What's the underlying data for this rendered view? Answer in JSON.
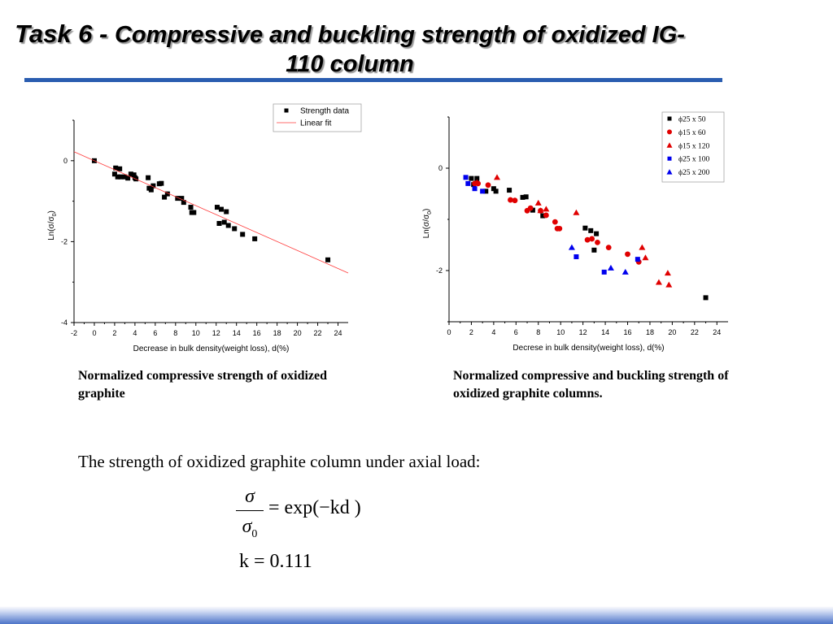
{
  "slide": {
    "title_prefix": "Task 6 - ",
    "title_main": "Compressive and buckling strength of oxidized IG-110 column",
    "caption_left": "Normalized compressive strength of oxidized graphite",
    "caption_right": "Normalized compressive and buckling strength of oxidized graphite columns.",
    "body_text": "The strength of oxidized graphite column under axial load:",
    "formula": {
      "numerator": "σ",
      "denominator": "σ",
      "denominator_sub": "0",
      "rhs": "= exp(−kd )",
      "k_line": "k = 0.111"
    },
    "colors": {
      "accent": "#2a5db0",
      "black": "#000000",
      "red": "#e00000",
      "blue": "#0000ee",
      "fit": "#ff3b3b"
    }
  },
  "chart_data": [
    {
      "type": "scatter",
      "xlabel": "Decrease in bulk density(weight loss), d(%)",
      "ylabel_base": "Ln(σ/σ",
      "ylabel_sub": "0",
      "ylabel_end": ")",
      "xlim": [
        -2,
        25
      ],
      "ylim": [
        -4,
        1
      ],
      "xticks": [
        -2,
        0,
        2,
        4,
        6,
        8,
        10,
        12,
        14,
        16,
        18,
        20,
        22,
        24
      ],
      "yticks": [
        -4,
        -2,
        0
      ],
      "legend_position": "top-right",
      "series": [
        {
          "name": "Strength data",
          "marker": "square",
          "color": "#000000",
          "points": [
            [
              0,
              0
            ],
            [
              2,
              -0.33
            ],
            [
              2.1,
              -0.18
            ],
            [
              2.3,
              -0.4
            ],
            [
              2.5,
              -0.2
            ],
            [
              2.6,
              -0.4
            ],
            [
              3,
              -0.4
            ],
            [
              3.3,
              -0.43
            ],
            [
              3.6,
              -0.33
            ],
            [
              3.9,
              -0.35
            ],
            [
              4,
              -0.42
            ],
            [
              4.1,
              -0.45
            ],
            [
              5.3,
              -0.42
            ],
            [
              5.4,
              -0.68
            ],
            [
              5.6,
              -0.72
            ],
            [
              5.8,
              -0.62
            ],
            [
              6.4,
              -0.57
            ],
            [
              6.6,
              -0.56
            ],
            [
              6.9,
              -0.9
            ],
            [
              7.2,
              -0.82
            ],
            [
              8.2,
              -0.93
            ],
            [
              8.6,
              -0.93
            ],
            [
              8.8,
              -1.03
            ],
            [
              9.5,
              -1.15
            ],
            [
              9.6,
              -1.28
            ],
            [
              9.8,
              -1.28
            ],
            [
              12.1,
              -1.15
            ],
            [
              12.3,
              -1.55
            ],
            [
              12.5,
              -1.2
            ],
            [
              12.8,
              -1.52
            ],
            [
              13,
              -1.26
            ],
            [
              13.2,
              -1.6
            ],
            [
              13.8,
              -1.68
            ],
            [
              14.6,
              -1.82
            ],
            [
              15.8,
              -1.93
            ],
            [
              23,
              -2.45
            ]
          ]
        },
        {
          "name": "Linear fit",
          "marker": "line",
          "color": "#ff3b3b",
          "points": [
            [
              -2,
              0.222
            ],
            [
              25,
              -2.775
            ]
          ]
        }
      ]
    },
    {
      "type": "scatter",
      "xlabel": "Decrese in bulk density(weight loss), d(%)",
      "ylabel_base": "Ln(σ/σ",
      "ylabel_sub": "0",
      "ylabel_end": ")",
      "xlim": [
        0,
        25
      ],
      "ylim": [
        -3,
        1
      ],
      "xticks": [
        0,
        2,
        4,
        6,
        8,
        10,
        12,
        14,
        16,
        18,
        20,
        22,
        24
      ],
      "yticks": [
        -2,
        0
      ],
      "legend_position": "top-right",
      "series": [
        {
          "name": "ϕ25 x 50",
          "marker": "square",
          "color": "#000000",
          "points": [
            [
              2,
              -0.2
            ],
            [
              2.2,
              -0.32
            ],
            [
              2.5,
              -0.2
            ],
            [
              3.3,
              -0.45
            ],
            [
              4,
              -0.4
            ],
            [
              4.2,
              -0.45
            ],
            [
              5.4,
              -0.43
            ],
            [
              6.6,
              -0.57
            ],
            [
              6.9,
              -0.56
            ],
            [
              7.5,
              -0.82
            ],
            [
              8.4,
              -0.93
            ],
            [
              12.2,
              -1.17
            ],
            [
              12.7,
              -1.22
            ],
            [
              13.2,
              -1.28
            ],
            [
              13,
              -1.6
            ],
            [
              23,
              -2.53
            ]
          ]
        },
        {
          "name": "ϕ15 x 60",
          "marker": "circle",
          "color": "#e00000",
          "points": [
            [
              2.3,
              -0.3
            ],
            [
              2.6,
              -0.3
            ],
            [
              3.5,
              -0.33
            ],
            [
              5.5,
              -0.62
            ],
            [
              5.9,
              -0.63
            ],
            [
              7,
              -0.83
            ],
            [
              7.3,
              -0.78
            ],
            [
              8.2,
              -0.83
            ],
            [
              8.7,
              -0.92
            ],
            [
              9.5,
              -1.05
            ],
            [
              9.7,
              -1.18
            ],
            [
              9.9,
              -1.18
            ],
            [
              12.4,
              -1.4
            ],
            [
              12.8,
              -1.38
            ],
            [
              13.3,
              -1.45
            ],
            [
              14.3,
              -1.55
            ],
            [
              16,
              -1.68
            ],
            [
              17,
              -1.83
            ]
          ]
        },
        {
          "name": "ϕ15 x 120",
          "marker": "triangle",
          "color": "#e00000",
          "points": [
            [
              2.5,
              -0.28
            ],
            [
              4.3,
              -0.18
            ],
            [
              8,
              -0.68
            ],
            [
              8.2,
              -0.83
            ],
            [
              8.7,
              -0.8
            ],
            [
              11.4,
              -0.87
            ],
            [
              17.3,
              -1.55
            ],
            [
              17.6,
              -1.75
            ],
            [
              18.8,
              -2.23
            ],
            [
              19.6,
              -2.05
            ],
            [
              19.7,
              -2.28
            ]
          ]
        },
        {
          "name": "ϕ25 x 100",
          "marker": "square",
          "color": "#0000ee",
          "points": [
            [
              1.5,
              -0.18
            ],
            [
              1.7,
              -0.3
            ],
            [
              2.3,
              -0.4
            ],
            [
              3,
              -0.45
            ],
            [
              11.4,
              -1.73
            ],
            [
              13.9,
              -2.03
            ],
            [
              16.9,
              -1.78
            ]
          ]
        },
        {
          "name": "ϕ25 x 200",
          "marker": "triangle",
          "color": "#0000ee",
          "points": [
            [
              11,
              -1.55
            ],
            [
              14.5,
              -1.95
            ],
            [
              15.8,
              -2.03
            ]
          ]
        }
      ]
    }
  ]
}
